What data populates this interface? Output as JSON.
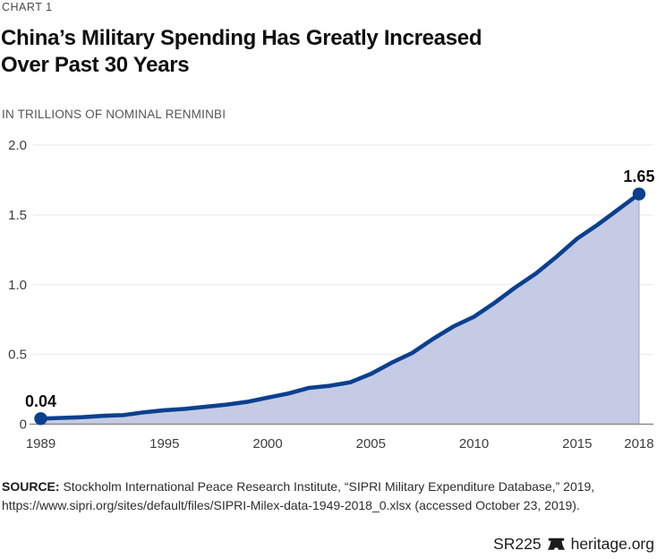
{
  "header": {
    "kicker": "CHART 1",
    "title_line1": "China’s Military Spending Has Greatly Increased",
    "title_line2": "Over Past 30 Years",
    "subtitle": "IN TRILLIONS OF NOMINAL RENMINBI"
  },
  "chart_data": {
    "type": "area",
    "title": "China’s Military Spending Has Greatly Increased Over Past 30 Years",
    "units_label": "IN TRILLIONS OF NOMINAL RENMINBI",
    "series_name": "China military spending, trillions of nominal renminbi",
    "x": [
      1989,
      1990,
      1991,
      1992,
      1993,
      1994,
      1995,
      1996,
      1997,
      1998,
      1999,
      2000,
      2001,
      2002,
      2003,
      2004,
      2005,
      2006,
      2007,
      2008,
      2009,
      2010,
      2011,
      2012,
      2013,
      2014,
      2015,
      2016,
      2017,
      2018
    ],
    "values": [
      0.04,
      0.045,
      0.05,
      0.06,
      0.065,
      0.085,
      0.1,
      0.11,
      0.125,
      0.14,
      0.16,
      0.19,
      0.22,
      0.26,
      0.275,
      0.3,
      0.36,
      0.44,
      0.51,
      0.61,
      0.7,
      0.77,
      0.87,
      0.98,
      1.08,
      1.2,
      1.33,
      1.43,
      1.54,
      1.65
    ],
    "ylim": [
      0,
      2.0
    ],
    "y_ticks": [
      0,
      0.5,
      1.0,
      1.5,
      2.0
    ],
    "y_tick_labels": [
      "0",
      "0.5",
      "1.0",
      "1.5",
      "2.0"
    ],
    "x_tick_years": [
      1989,
      1995,
      2000,
      2005,
      2010,
      2015,
      2018
    ],
    "grid": true,
    "legend": "none",
    "point_labels": [
      {
        "year": 1989,
        "text": "0.04"
      },
      {
        "year": 2018,
        "text": "1.65"
      }
    ],
    "colors": {
      "line": "#0b408f",
      "fill": "#c5cbe4",
      "grid": "#e9e9e9",
      "axis": "#8a8a8a",
      "area_edge": "#9aa3bd",
      "tick_text": "#3d3d3d",
      "label_text": "#0f0f0f"
    }
  },
  "footer": {
    "source_label": "SOURCE:",
    "source_text1": "Stockholm International Peace Research Institute, “SIPRI Military Expenditure Database,” 2019,",
    "source_text2": "https://www.sipri.org/sites/default/files/SIPRI-Milex-data-1949-2018_0.xlsx (accessed October 23, 2019).",
    "report_id": "SR225",
    "brand": "heritage.org"
  }
}
